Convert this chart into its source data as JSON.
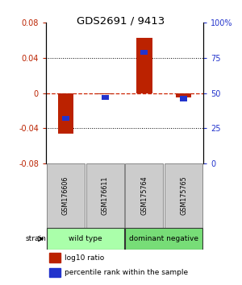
{
  "title": "GDS2691 / 9413",
  "samples": [
    "GSM176606",
    "GSM176611",
    "GSM175764",
    "GSM175765"
  ],
  "log10_ratio": [
    -0.046,
    -0.001,
    0.063,
    -0.005
  ],
  "percentile_rank_raw": [
    32,
    47,
    79,
    46
  ],
  "groups": [
    {
      "label": "wild type",
      "samples": [
        0,
        1
      ],
      "color": "#aaffaa"
    },
    {
      "label": "dominant negative",
      "samples": [
        2,
        3
      ],
      "color": "#77dd77"
    }
  ],
  "strain_label": "strain",
  "ylim_left": [
    -0.08,
    0.08
  ],
  "ylim_right": [
    0,
    100
  ],
  "yticks_left": [
    -0.08,
    -0.04,
    0,
    0.04,
    0.08
  ],
  "yticks_right": [
    0,
    25,
    50,
    75,
    100
  ],
  "ytick_labels_right": [
    "0",
    "25",
    "50",
    "75",
    "100%"
  ],
  "bar_width": 0.4,
  "red_color": "#bb2200",
  "blue_color": "#2233cc",
  "zero_line_color": "#cc2200",
  "bar_bg_color": "#cccccc",
  "legend_red_label": "log10 ratio",
  "legend_blue_label": "percentile rank within the sample"
}
